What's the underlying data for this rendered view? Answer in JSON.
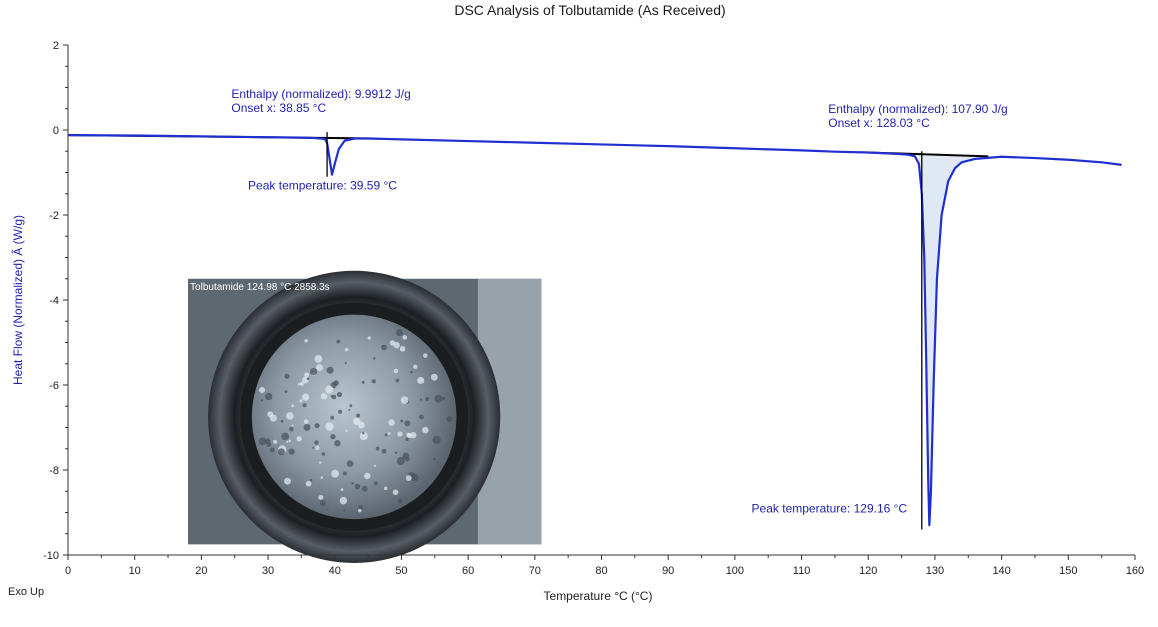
{
  "chart_data": {
    "type": "line",
    "title": "DSC Analysis of Tolbutamide (As Received)",
    "xlabel": "Temperature °C (°C)",
    "ylabel": "Heat Flow (Normalized) Â (W/g)",
    "xlim": [
      0,
      160
    ],
    "ylim": [
      -10,
      2
    ],
    "x_ticks": [
      0,
      10,
      20,
      30,
      40,
      50,
      60,
      70,
      80,
      90,
      100,
      110,
      120,
      130,
      140,
      150,
      160
    ],
    "y_ticks": [
      2,
      0,
      -2,
      -4,
      -6,
      -8,
      -10
    ],
    "grid": false,
    "corner_label": "Exo Up",
    "series": [
      {
        "color": "#1f2fd0",
        "x": [
          0,
          10,
          20,
          30,
          35,
          37,
          38.5,
          38.85,
          39.2,
          39.59,
          40,
          40.6,
          41.5,
          43,
          45,
          50,
          60,
          70,
          80,
          90,
          100,
          110,
          115,
          120,
          124,
          126,
          127,
          127.6,
          128.03,
          128.4,
          128.7,
          129,
          129.16,
          129.4,
          129.8,
          130.3,
          131,
          132,
          133,
          134,
          136,
          140,
          145,
          150,
          155,
          158
        ],
        "y": [
          -0.12,
          -0.13,
          -0.15,
          -0.17,
          -0.18,
          -0.19,
          -0.21,
          -0.3,
          -0.65,
          -1.05,
          -0.8,
          -0.45,
          -0.25,
          -0.2,
          -0.2,
          -0.22,
          -0.26,
          -0.3,
          -0.34,
          -0.38,
          -0.43,
          -0.48,
          -0.51,
          -0.53,
          -0.56,
          -0.58,
          -0.62,
          -0.8,
          -1.5,
          -3,
          -5.5,
          -8.3,
          -9.3,
          -8.5,
          -6,
          -3.5,
          -2,
          -1.2,
          -0.9,
          -0.76,
          -0.68,
          -0.63,
          -0.66,
          -0.7,
          -0.76,
          -0.82
        ]
      }
    ],
    "baselines": [
      {
        "color": "#000000",
        "x": [
          0,
          46
        ],
        "y": [
          -0.12,
          -0.2
        ]
      },
      {
        "color": "#000000",
        "x": [
          120,
          138
        ],
        "y": [
          -0.53,
          -0.62
        ]
      }
    ],
    "peak_markers": [
      {
        "x": 38.85,
        "y_top": -0.05,
        "y_bottom": -1.1
      },
      {
        "x": 128.03,
        "y_top": -0.5,
        "y_bottom": -9.4
      }
    ],
    "shaded_peak": {
      "color": "#dfe8f3",
      "x_from": 127.6,
      "x_to": 137
    },
    "annotations": [
      {
        "lines": [
          "Enthalpy (normalized): 9.9912 J/g",
          "Onset x: 38.85 °C"
        ],
        "x": 24.5,
        "y": 0.75
      },
      {
        "lines": [
          "Peak temperature: 39.59 °C"
        ],
        "x": 27,
        "y": -1.4
      },
      {
        "lines": [
          "Enthalpy (normalized): 107.90 J/g",
          "Onset x: 128.03 °C"
        ],
        "x": 114,
        "y": 0.4
      },
      {
        "lines": [
          "Peak temperature: 129.16 °C"
        ],
        "x": 102.5,
        "y": -9.0
      }
    ],
    "inset": {
      "caption": "Tolbutamide  124.98 °C 2858.3s",
      "x_from": 18,
      "x_to": 71,
      "y_top": -3.5,
      "y_bottom": -9.75
    }
  }
}
